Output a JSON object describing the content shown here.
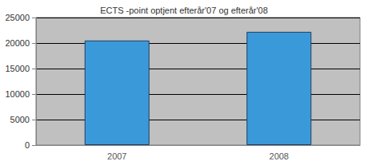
{
  "chart_data": {
    "type": "bar",
    "title": "ECTS -point optjent efterår'07 og efterår'08",
    "categories": [
      "2007",
      "2008"
    ],
    "values": [
      20500,
      22200
    ],
    "color": "#3a9ad9",
    "ylim": [
      0,
      25000
    ],
    "yticks": [
      0,
      5000,
      10000,
      15000,
      20000,
      25000
    ],
    "grid": true
  }
}
